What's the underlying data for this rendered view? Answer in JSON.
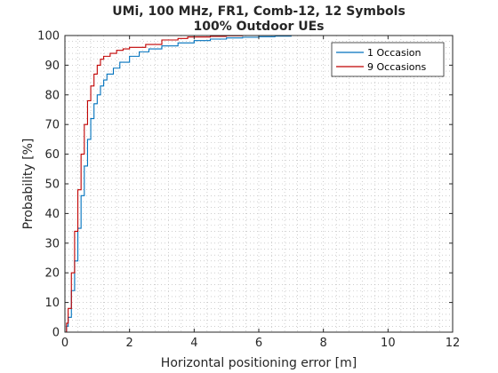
{
  "chart_data": {
    "type": "line",
    "title": "UMi, 100 MHz, FR1, Comb-12, 12 Symbols",
    "subtitle": "100% Outdoor UEs",
    "xlabel": "Horizontal positioning error [m]",
    "ylabel": "Probability [%]",
    "xlim": [
      0,
      12
    ],
    "ylim": [
      0,
      100
    ],
    "xticks": [
      0,
      2,
      4,
      6,
      8,
      10,
      12
    ],
    "yticks": [
      0,
      10,
      20,
      30,
      40,
      50,
      60,
      70,
      80,
      90,
      100
    ],
    "grid": "minor-dotted",
    "legend_position": "top-right",
    "series": [
      {
        "name": "1 Occasion",
        "color": "#0072BD",
        "x": [
          0,
          0.05,
          0.1,
          0.2,
          0.3,
          0.4,
          0.5,
          0.6,
          0.7,
          0.8,
          0.9,
          1.0,
          1.1,
          1.2,
          1.3,
          1.5,
          1.7,
          2.0,
          2.3,
          2.6,
          3.0,
          3.5,
          4.0,
          4.5,
          5.0,
          5.5,
          6.0,
          6.5,
          7.0,
          8.0,
          10.0,
          12.0
        ],
        "y": [
          0,
          2,
          5,
          14,
          24,
          35,
          46,
          56,
          65,
          72,
          77,
          80,
          83,
          85,
          87,
          89,
          91,
          93,
          94.5,
          95.5,
          96.5,
          97.5,
          98.3,
          98.8,
          99.2,
          99.4,
          99.6,
          99.8,
          100,
          100,
          100,
          100
        ]
      },
      {
        "name": "9 Occasions",
        "color": "#C00000",
        "x": [
          0,
          0.05,
          0.1,
          0.2,
          0.3,
          0.4,
          0.5,
          0.6,
          0.7,
          0.8,
          0.9,
          1.0,
          1.1,
          1.2,
          1.4,
          1.6,
          1.8,
          2.0,
          2.5,
          3.0,
          3.5,
          3.8,
          4.5,
          5.0,
          5.5
        ],
        "y": [
          0,
          3,
          8,
          20,
          34,
          48,
          60,
          70,
          78,
          83,
          87,
          90,
          92,
          93,
          94,
          95,
          95.5,
          96,
          97,
          98.5,
          99,
          99.5,
          99.7,
          99.9,
          100
        ]
      }
    ]
  }
}
